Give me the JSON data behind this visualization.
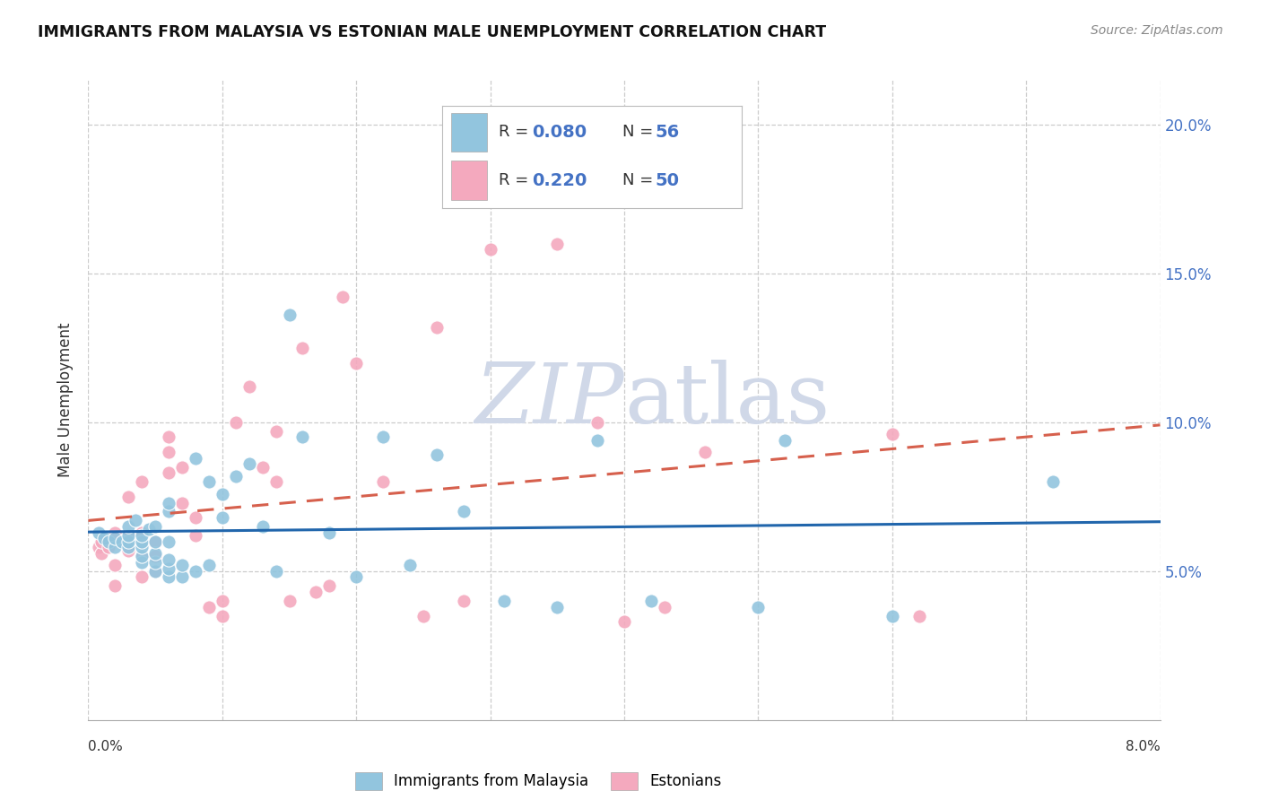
{
  "title": "IMMIGRANTS FROM MALAYSIA VS ESTONIAN MALE UNEMPLOYMENT CORRELATION CHART",
  "source": "Source: ZipAtlas.com",
  "ylabel": "Male Unemployment",
  "xlim": [
    0.0,
    0.08
  ],
  "ylim": [
    0.0,
    0.215
  ],
  "y_ticks": [
    0.05,
    0.1,
    0.15,
    0.2
  ],
  "y_tick_labels": [
    "5.0%",
    "10.0%",
    "15.0%",
    "20.0%"
  ],
  "x_ticks": [
    0.0,
    0.01,
    0.02,
    0.03,
    0.04,
    0.05,
    0.06,
    0.07,
    0.08
  ],
  "color_blue": "#92c5de",
  "color_pink": "#f4a9be",
  "trend_blue_color": "#2166ac",
  "trend_pink_color": "#d6604d",
  "watermark_color": "#d0d8e8",
  "background": "#ffffff",
  "grid_color": "#cccccc",
  "legend_r1": "0.080",
  "legend_n1": "56",
  "legend_r2": "0.220",
  "legend_n2": "50",
  "legend_text_color": "#4472C4",
  "blue_x": [
    0.0008,
    0.0012,
    0.0015,
    0.002,
    0.002,
    0.0025,
    0.003,
    0.003,
    0.003,
    0.003,
    0.0035,
    0.004,
    0.004,
    0.004,
    0.004,
    0.004,
    0.0045,
    0.005,
    0.005,
    0.005,
    0.005,
    0.005,
    0.006,
    0.006,
    0.006,
    0.006,
    0.006,
    0.006,
    0.007,
    0.007,
    0.008,
    0.008,
    0.009,
    0.009,
    0.01,
    0.01,
    0.011,
    0.012,
    0.013,
    0.014,
    0.015,
    0.016,
    0.018,
    0.02,
    0.022,
    0.024,
    0.026,
    0.028,
    0.031,
    0.035,
    0.038,
    0.042,
    0.05,
    0.052,
    0.06,
    0.072
  ],
  "blue_y": [
    0.063,
    0.061,
    0.06,
    0.058,
    0.061,
    0.06,
    0.058,
    0.06,
    0.062,
    0.065,
    0.067,
    0.053,
    0.055,
    0.058,
    0.06,
    0.062,
    0.064,
    0.05,
    0.053,
    0.056,
    0.06,
    0.065,
    0.048,
    0.051,
    0.054,
    0.06,
    0.07,
    0.073,
    0.048,
    0.052,
    0.05,
    0.088,
    0.052,
    0.08,
    0.068,
    0.076,
    0.082,
    0.086,
    0.065,
    0.05,
    0.136,
    0.095,
    0.063,
    0.048,
    0.095,
    0.052,
    0.089,
    0.07,
    0.04,
    0.038,
    0.094,
    0.04,
    0.038,
    0.094,
    0.035,
    0.08
  ],
  "pink_x": [
    0.0008,
    0.001,
    0.001,
    0.0015,
    0.002,
    0.002,
    0.002,
    0.003,
    0.003,
    0.003,
    0.004,
    0.004,
    0.004,
    0.004,
    0.005,
    0.005,
    0.005,
    0.006,
    0.006,
    0.006,
    0.007,
    0.007,
    0.008,
    0.008,
    0.009,
    0.01,
    0.01,
    0.011,
    0.012,
    0.013,
    0.014,
    0.014,
    0.015,
    0.016,
    0.017,
    0.018,
    0.019,
    0.02,
    0.022,
    0.025,
    0.026,
    0.028,
    0.03,
    0.035,
    0.038,
    0.04,
    0.043,
    0.046,
    0.06,
    0.062
  ],
  "pink_y": [
    0.058,
    0.056,
    0.06,
    0.058,
    0.045,
    0.052,
    0.063,
    0.057,
    0.062,
    0.075,
    0.048,
    0.055,
    0.063,
    0.08,
    0.05,
    0.055,
    0.06,
    0.083,
    0.09,
    0.095,
    0.073,
    0.085,
    0.062,
    0.068,
    0.038,
    0.035,
    0.04,
    0.1,
    0.112,
    0.085,
    0.097,
    0.08,
    0.04,
    0.125,
    0.043,
    0.045,
    0.142,
    0.12,
    0.08,
    0.035,
    0.132,
    0.04,
    0.158,
    0.16,
    0.1,
    0.033,
    0.038,
    0.09,
    0.096,
    0.035
  ]
}
